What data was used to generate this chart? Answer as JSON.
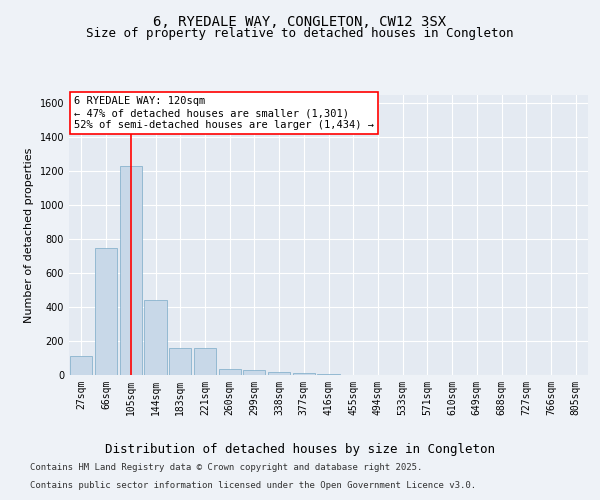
{
  "title_line1": "6, RYEDALE WAY, CONGLETON, CW12 3SX",
  "title_line2": "Size of property relative to detached houses in Congleton",
  "xlabel": "Distribution of detached houses by size in Congleton",
  "ylabel": "Number of detached properties",
  "categories": [
    "27sqm",
    "66sqm",
    "105sqm",
    "144sqm",
    "183sqm",
    "221sqm",
    "260sqm",
    "299sqm",
    "338sqm",
    "377sqm",
    "416sqm",
    "455sqm",
    "494sqm",
    "533sqm",
    "571sqm",
    "610sqm",
    "649sqm",
    "688sqm",
    "727sqm",
    "766sqm",
    "805sqm"
  ],
  "values": [
    110,
    750,
    1230,
    440,
    162,
    158,
    35,
    30,
    15,
    13,
    5,
    2,
    1,
    0,
    0,
    0,
    0,
    0,
    0,
    0,
    0
  ],
  "bar_color": "#c8d8e8",
  "bar_edge_color": "#7aaac8",
  "vline_x_index": 2,
  "vline_color": "red",
  "annotation_text": "6 RYEDALE WAY: 120sqm\n← 47% of detached houses are smaller (1,301)\n52% of semi-detached houses are larger (1,434) →",
  "annotation_box_color": "red",
  "ylim": [
    0,
    1650
  ],
  "yticks": [
    0,
    200,
    400,
    600,
    800,
    1000,
    1200,
    1400,
    1600
  ],
  "bg_color": "#eef2f7",
  "plot_bg_color": "#e4eaf2",
  "grid_color": "#ffffff",
  "footer_line1": "Contains HM Land Registry data © Crown copyright and database right 2025.",
  "footer_line2": "Contains public sector information licensed under the Open Government Licence v3.0.",
  "title_fontsize": 10,
  "subtitle_fontsize": 9,
  "axis_label_fontsize": 8,
  "tick_fontsize": 7,
  "annotation_fontsize": 7.5,
  "footer_fontsize": 6.5
}
